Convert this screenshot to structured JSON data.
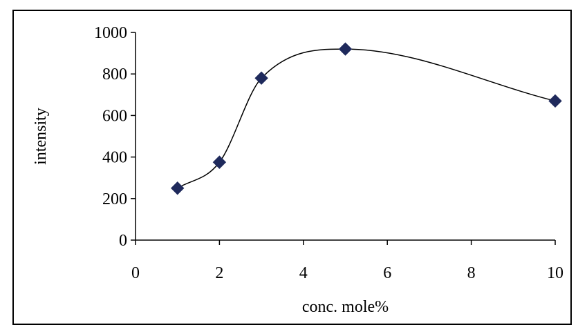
{
  "chart_data": {
    "type": "scatter",
    "title": "",
    "xlabel": "conc. mole%",
    "ylabel": "intensity",
    "xlim": [
      0,
      10
    ],
    "ylim": [
      0,
      1000
    ],
    "x_ticks": [
      "0",
      "2",
      "4",
      "6",
      "8",
      "10"
    ],
    "y_ticks": [
      "0",
      "200",
      "400",
      "600",
      "800",
      "1000"
    ],
    "grid": false,
    "legend": "none",
    "series": [
      {
        "x": [
          1,
          2,
          3,
          5,
          10
        ],
        "y": [
          250,
          375,
          780,
          920,
          670
        ],
        "marker": "diamond",
        "line": "smooth",
        "color": "#1f2a5c"
      }
    ]
  }
}
